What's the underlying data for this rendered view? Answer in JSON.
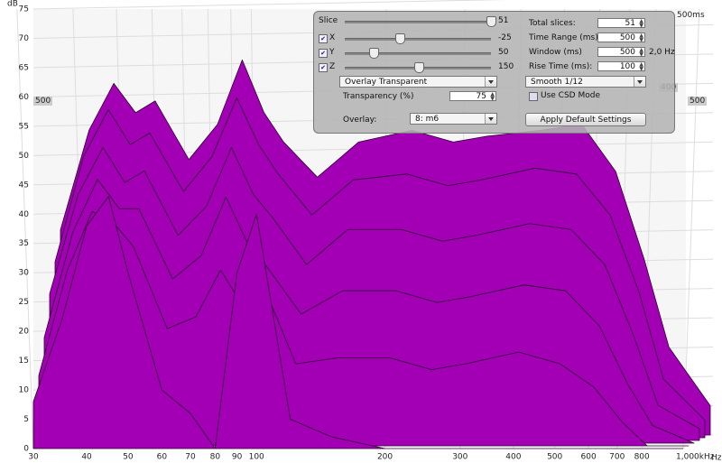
{
  "chart_data": {
    "type": "waterfall",
    "y_label": "dB",
    "ylim": [
      0,
      75
    ],
    "yticks": [
      0,
      5,
      10,
      15,
      20,
      25,
      30,
      35,
      40,
      45,
      50,
      55,
      60,
      65,
      70,
      75
    ],
    "xlim": [
      30,
      1000
    ],
    "log_x": true,
    "xticks": [
      30,
      40,
      50,
      60,
      70,
      80,
      90,
      100,
      200,
      300,
      400,
      500,
      600,
      700,
      800,
      {
        "value": 1000,
        "label": "1,000kHz"
      }
    ],
    "x_unit": "Hz",
    "frequencies": [
      30,
      35,
      40,
      45,
      50,
      60,
      70,
      80,
      90,
      100,
      120,
      150,
      200,
      250,
      300,
      400,
      500,
      600,
      700,
      800,
      1000
    ],
    "slices": [
      [
        35,
        52,
        60,
        55,
        57,
        47,
        53,
        64,
        55,
        50,
        44,
        50,
        52,
        50,
        51,
        52,
        53,
        45,
        30,
        15,
        5
      ],
      [
        30,
        48,
        56,
        50,
        52,
        42,
        48,
        58,
        50,
        45,
        38,
        44,
        45,
        43,
        44,
        46,
        45,
        38,
        25,
        10,
        3
      ],
      [
        25,
        42,
        50,
        44,
        46,
        35,
        40,
        50,
        42,
        38,
        30,
        36,
        36,
        34,
        35,
        37,
        36,
        30,
        18,
        6,
        2
      ],
      [
        18,
        36,
        45,
        40,
        40,
        28,
        32,
        42,
        34,
        30,
        22,
        26,
        26,
        24,
        25,
        27,
        26,
        20,
        10,
        3,
        0
      ],
      [
        12,
        30,
        40,
        38,
        34,
        20,
        22,
        30,
        24,
        28,
        14,
        15,
        15,
        13,
        14,
        16,
        14,
        10,
        4,
        0,
        0
      ],
      [
        8,
        22,
        38,
        43,
        30,
        10,
        6,
        0,
        30,
        40,
        5,
        2,
        0,
        0,
        0,
        0,
        0,
        0,
        0,
        0,
        0
      ]
    ],
    "color": "#a300b5",
    "grid": true,
    "depth_labels": [
      "500ms",
      "400",
      "500",
      "500"
    ]
  },
  "controls": {
    "slice": {
      "label": "Slice",
      "value": 51
    },
    "x": {
      "label": "X",
      "value": -25
    },
    "y": {
      "label": "Y",
      "value": 50
    },
    "z": {
      "label": "Z",
      "value": 150
    },
    "overlay_mode": "Overlay Transparent",
    "transparency": {
      "label": "Transparency (%)",
      "value": 75
    },
    "overlay": {
      "label": "Overlay:",
      "value": "8: m6"
    },
    "total_slices": {
      "label": "Total slices:",
      "value": 51
    },
    "time_range": {
      "label": "Time Range (ms):",
      "value": 500
    },
    "window": {
      "label": "Window (ms)",
      "value": 500,
      "resolution": "2,0 Hz"
    },
    "rise_time": {
      "label": "Rise Time (ms):",
      "value": 100
    },
    "smoothing": "Smooth 1/12",
    "csd_mode": "Use CSD Mode",
    "apply_button": "Apply Default Settings"
  }
}
